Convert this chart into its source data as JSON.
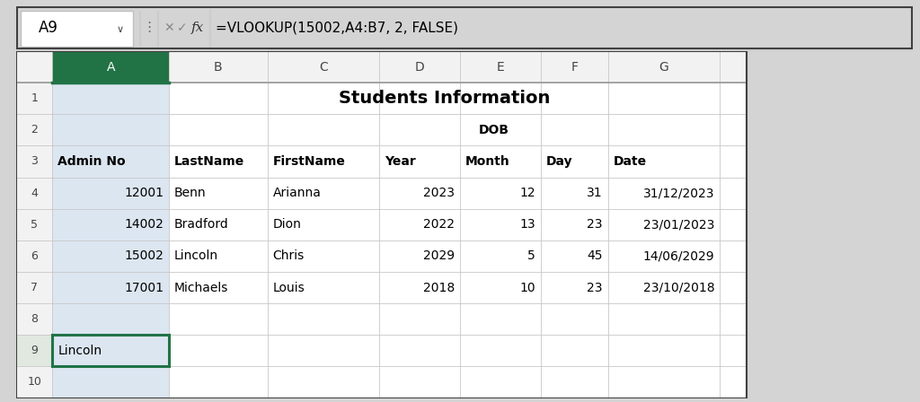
{
  "formula_bar_cell": "A9",
  "formula_bar_formula": "=VLOOKUP(15002,A4:B7, 2, FALSE)",
  "col_labels": [
    "",
    "A",
    "B",
    "C",
    "D",
    "E",
    "F",
    "G",
    ""
  ],
  "title_text": "Students Information",
  "dob_label": "DOB",
  "headers": [
    "Admin No",
    "LastName",
    "FirstName",
    "Year",
    "Month",
    "Day",
    "Date"
  ],
  "data_rows": [
    [
      "12001",
      "Benn",
      "Arianna",
      "2023",
      "12",
      "31",
      "31/12/2023"
    ],
    [
      "14002",
      "Bradford",
      "Dion",
      "2022",
      "13",
      "23",
      "23/01/2023"
    ],
    [
      "15002",
      "Lincoln",
      "Chris",
      "2029",
      "5",
      "45",
      "14/06/2029"
    ],
    [
      "17001",
      "Michaels",
      "Louis",
      "2018",
      "10",
      "23",
      "23/10/2018"
    ]
  ],
  "data_alignments": [
    "right",
    "left",
    "left",
    "right",
    "right",
    "right",
    "right"
  ],
  "result_value": "Lincoln",
  "bg_color": "#ffffff",
  "grid_color": "#c8c8c8",
  "row_header_bg": "#f2f2f2",
  "selected_col_header_bg": "#217346",
  "selected_col_bg": "#dce6f1",
  "selected_cell_border": "#217346",
  "outer_border_color": "#404040",
  "formula_bar_bg": "#f5f5f5",
  "formula_box_bg": "#ffffff",
  "title_fontsize": 14,
  "header_fontsize": 10,
  "data_fontsize": 10,
  "fb_fontsize": 11,
  "row_num_fontsize": 9
}
